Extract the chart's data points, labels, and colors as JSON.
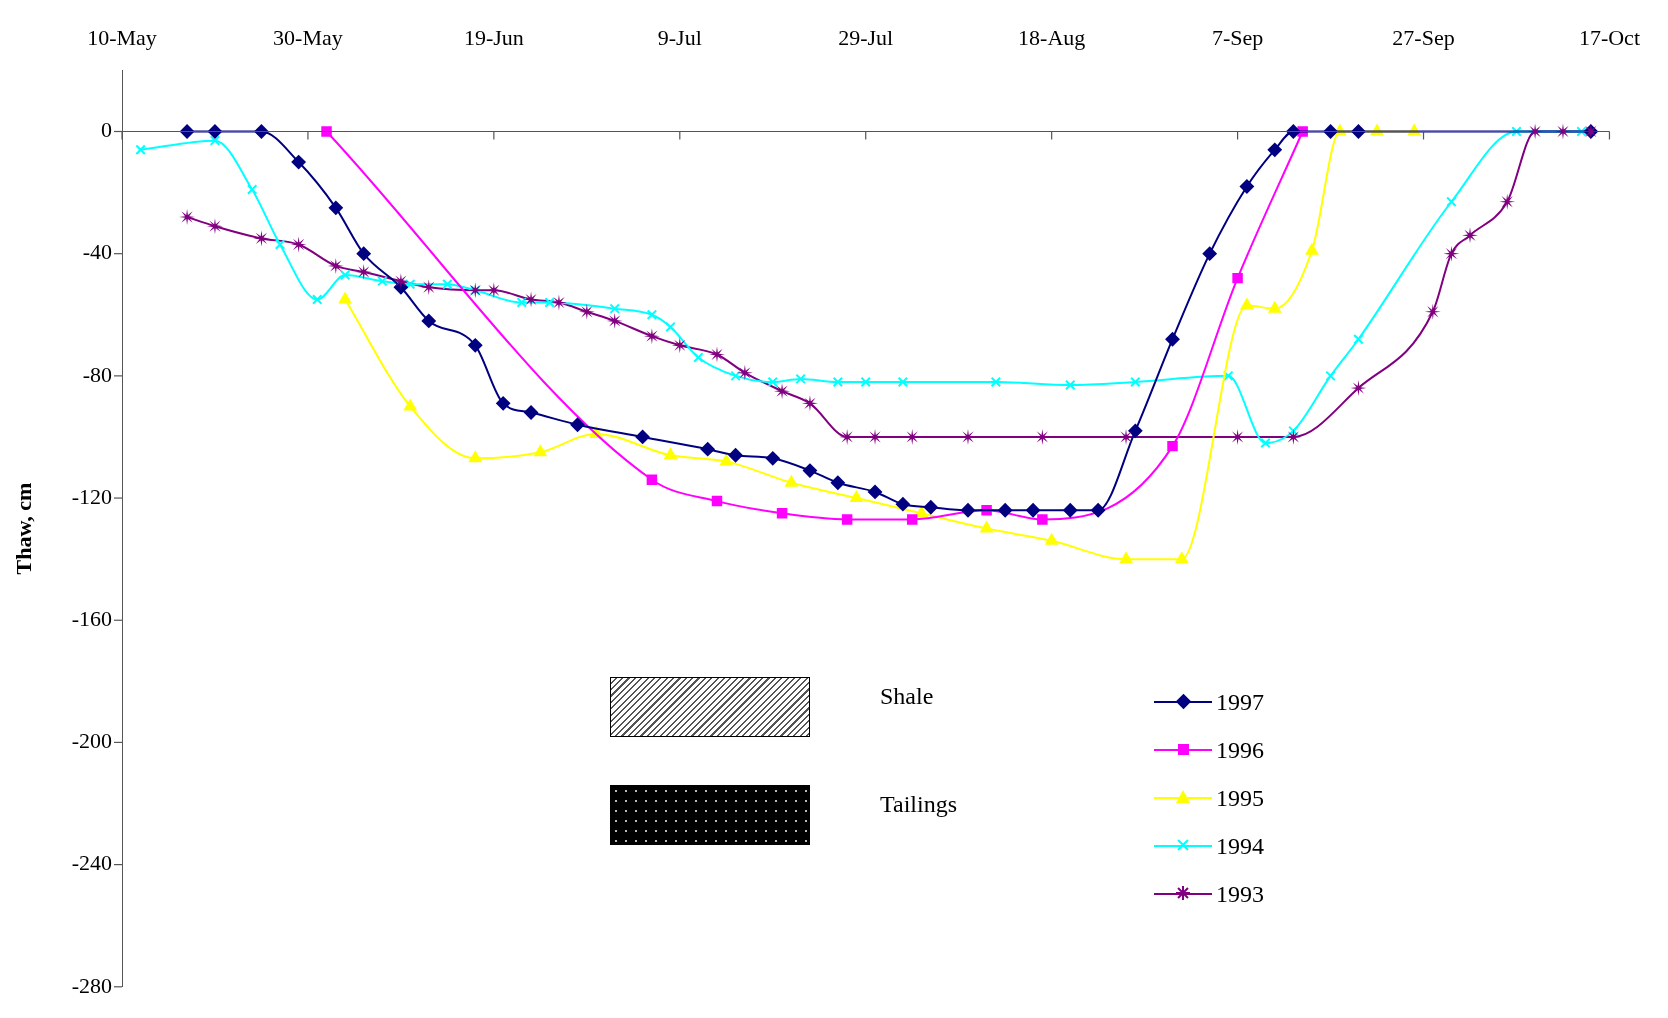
{
  "chart_data": {
    "type": "line",
    "ylabel": "Thaw, cm",
    "legend": "bottom",
    "grid": false,
    "xlim": [
      "--05-10",
      "--10-17"
    ],
    "xticks": [
      {
        "value": "--05-10",
        "label": "10-May"
      },
      {
        "value": "--05-30",
        "label": "30-May"
      },
      {
        "value": "--06-19",
        "label": "19-Jun"
      },
      {
        "value": "--07-09",
        "label": "9-Jul"
      },
      {
        "value": "--07-29",
        "label": "29-Jul"
      },
      {
        "value": "--08-18",
        "label": "18-Aug"
      },
      {
        "value": "--09-07",
        "label": "7-Sep"
      },
      {
        "value": "--09-27",
        "label": "27-Sep"
      },
      {
        "value": "--10-17",
        "label": "17-Oct"
      }
    ],
    "ylim": [
      -280,
      20
    ],
    "yticks": [
      0,
      -40,
      -80,
      -120,
      -160,
      -200,
      -240,
      -280
    ],
    "annotations": [
      "Shale",
      "Tailings"
    ],
    "ref_lines": [
      {
        "axis": "y",
        "value": 0,
        "color": "#555555"
      }
    ],
    "series": [
      {
        "name": "1997",
        "color": "#000080",
        "marker": "diamond",
        "x": [
          "--05-17",
          "--05-20",
          "--05-25",
          "--05-29",
          "--06-02",
          "--06-05",
          "--06-09",
          "--06-12",
          "--06-17",
          "--06-20",
          "--06-23",
          "--06-28",
          "--07-05",
          "--07-12",
          "--07-15",
          "--07-19",
          "--07-23",
          "--07-26",
          "--07-30",
          "--08-02",
          "--08-05",
          "--08-09",
          "--08-13",
          "--08-16",
          "--08-20",
          "--08-23",
          "--08-27",
          "--08-31",
          "--09-04",
          "--09-08",
          "--09-11",
          "--09-13",
          "--09-17",
          "--09-20",
          "--10-15"
        ],
        "values": [
          0,
          0,
          0,
          -10,
          -25,
          -40,
          -51,
          -62,
          -70,
          -89,
          -92,
          -96,
          -100,
          -104,
          -106,
          -107,
          -111,
          -115,
          -118,
          -122,
          -123,
          -124,
          -124,
          -124,
          -124,
          -124,
          -98,
          -68,
          -40,
          -18,
          -6,
          0,
          0,
          0,
          0
        ]
      },
      {
        "name": "1996",
        "color": "#ff00ff",
        "marker": "square",
        "x": [
          "--06-01",
          "--07-06",
          "--07-13",
          "--07-20",
          "--07-27",
          "--08-03",
          "--08-11",
          "--08-17",
          "--08-31",
          "--09-07",
          "--09-14"
        ],
        "values": [
          0,
          -114,
          -121,
          -125,
          -127,
          -127,
          -124,
          -127,
          -103,
          -48,
          0
        ]
      },
      {
        "name": "1995",
        "color": "#ffff00",
        "marker": "triangle",
        "x": [
          "--06-03",
          "--06-10",
          "--06-17",
          "--06-24",
          "--06-30",
          "--07-08",
          "--07-14",
          "--07-21",
          "--07-28",
          "--08-04",
          "--08-11",
          "--08-18",
          "--08-26",
          "--09-01",
          "--09-08",
          "--09-11",
          "--09-15",
          "--09-18",
          "--09-22",
          "--09-26"
        ],
        "values": [
          -55,
          -90,
          -107,
          -105,
          -99,
          -106,
          -108,
          -115,
          -120,
          -125,
          -130,
          -134,
          -140,
          -140,
          -57,
          -58,
          -39,
          0,
          0,
          0
        ]
      },
      {
        "name": "1994",
        "color": "#00ffff",
        "marker": "cross",
        "x": [
          "--05-12",
          "--05-20",
          "--05-24",
          "--05-27",
          "--05-31",
          "--06-03",
          "--06-07",
          "--06-10",
          "--06-14",
          "--06-17",
          "--06-22",
          "--06-25",
          "--07-02",
          "--07-06",
          "--07-08",
          "--07-11",
          "--07-15",
          "--07-19",
          "--07-22",
          "--07-26",
          "--07-29",
          "--08-02",
          "--08-12",
          "--08-20",
          "--08-27",
          "--09-06",
          "--09-10",
          "--09-13",
          "--09-17",
          "--09-20",
          "--09-30",
          "--10-07",
          "--10-14"
        ],
        "values": [
          -6,
          -3,
          -19,
          -37,
          -55,
          -47,
          -49,
          -50,
          -50,
          -52,
          -56,
          -56,
          -58,
          -60,
          -64,
          -74,
          -80,
          -82,
          -81,
          -82,
          -82,
          -82,
          -82,
          -83,
          -82,
          -80,
          -102,
          -98,
          -80,
          -68,
          -23,
          0,
          0
        ]
      },
      {
        "name": "1993",
        "color": "#800080",
        "marker": "star",
        "x": [
          "--05-17",
          "--05-20",
          "--05-25",
          "--05-29",
          "--06-02",
          "--06-05",
          "--06-09",
          "--06-12",
          "--06-17",
          "--06-19",
          "--06-23",
          "--06-26",
          "--06-29",
          "--07-02",
          "--07-06",
          "--07-09",
          "--07-13",
          "--07-16",
          "--07-20",
          "--07-23",
          "--07-27",
          "--07-30",
          "--08-03",
          "--08-09",
          "--08-17",
          "--08-26",
          "--09-07",
          "--09-13",
          "--09-20",
          "--09-28",
          "--09-30",
          "--10-02",
          "--10-06",
          "--10-09",
          "--10-12",
          "--10-15"
        ],
        "values": [
          -28,
          -31,
          -35,
          -37,
          -44,
          -46,
          -49,
          -51,
          -52,
          -52,
          -55,
          -56,
          -59,
          -62,
          -67,
          -70,
          -73,
          -79,
          -85,
          -89,
          -100,
          -100,
          -100,
          -100,
          -100,
          -100,
          -100,
          -100,
          -84,
          -59,
          -40,
          -34,
          -23,
          0,
          0,
          0
        ]
      }
    ]
  }
}
